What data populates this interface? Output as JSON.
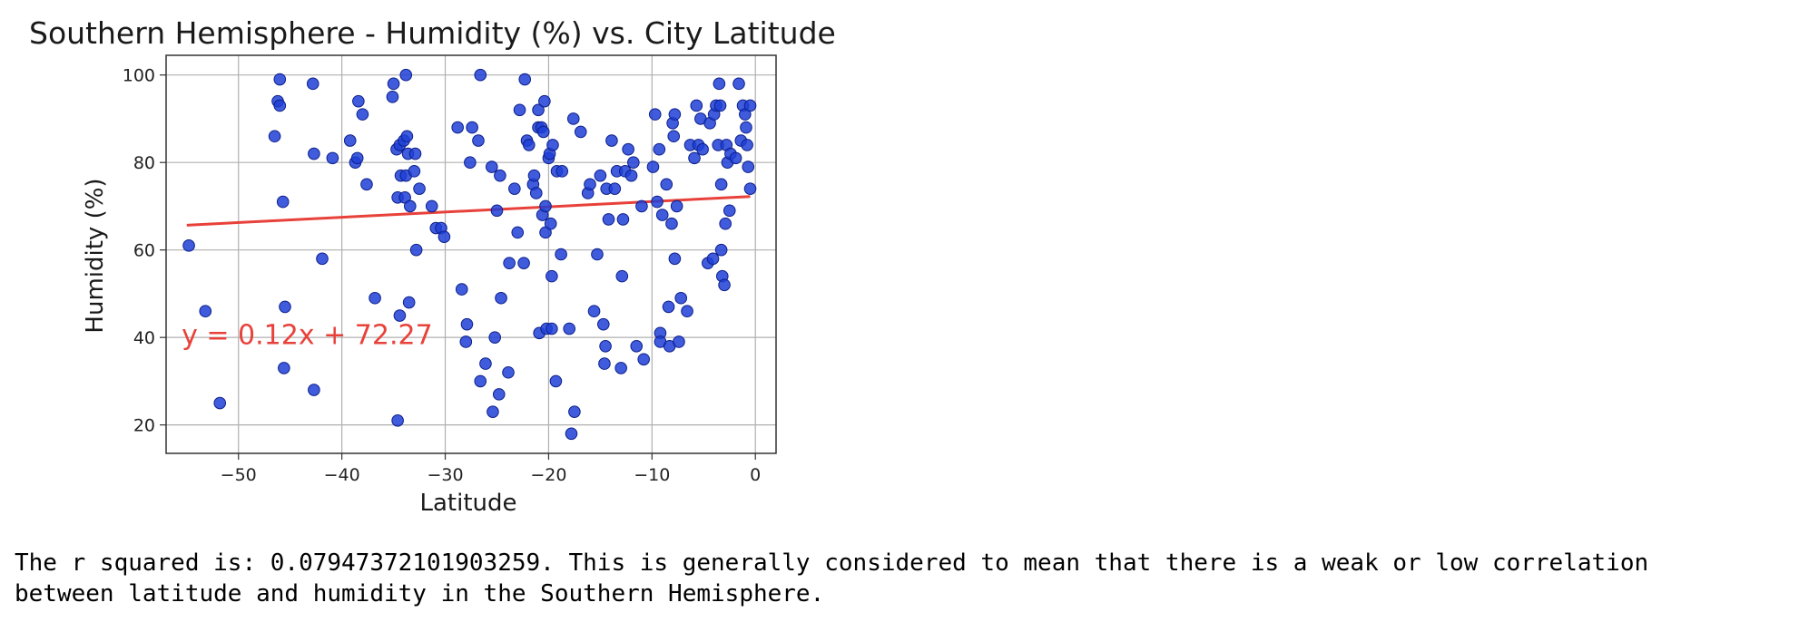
{
  "chart_data": {
    "type": "scatter",
    "title": "Southern Hemisphere - Humidity (%) vs. City Latitude",
    "xlabel": "Latitude",
    "ylabel": "Humidity (%)",
    "xlim": [
      -57,
      2
    ],
    "ylim": [
      13.5,
      104.5
    ],
    "xticks": [
      -50,
      -40,
      -30,
      -20,
      -10,
      0
    ],
    "yticks": [
      20,
      40,
      60,
      80,
      100
    ],
    "xtick_labels": [
      "−50",
      "−40",
      "−30",
      "−20",
      "−10",
      "0"
    ],
    "ytick_labels": [
      "20",
      "40",
      "60",
      "80",
      "100"
    ],
    "grid": true,
    "point_color": "#1f3fd6",
    "line_color": "#e8413a",
    "regression": {
      "slope": 0.12,
      "intercept": 72.27,
      "x_range": [
        -55,
        -0.5
      ],
      "equation_label": "y = 0.12x + 72.27",
      "label_position": [
        -55.5,
        38.5
      ]
    },
    "points": [
      [
        -54.8,
        61
      ],
      [
        -53.2,
        46
      ],
      [
        -51.8,
        25
      ],
      [
        -46.5,
        86
      ],
      [
        -46.2,
        94
      ],
      [
        -46.0,
        99
      ],
      [
        -46.0,
        93
      ],
      [
        -45.7,
        71
      ],
      [
        -45.5,
        47
      ],
      [
        -45.6,
        33
      ],
      [
        -42.8,
        98
      ],
      [
        -42.7,
        82
      ],
      [
        -42.7,
        28
      ],
      [
        -41.9,
        58
      ],
      [
        -40.9,
        81
      ],
      [
        -39.2,
        85
      ],
      [
        -38.7,
        80
      ],
      [
        -38.5,
        81
      ],
      [
        -38.4,
        94
      ],
      [
        -38.0,
        91
      ],
      [
        -37.6,
        75
      ],
      [
        -36.8,
        49
      ],
      [
        -35.1,
        95
      ],
      [
        -35.0,
        98
      ],
      [
        -34.7,
        83
      ],
      [
        -34.6,
        72
      ],
      [
        -34.4,
        84
      ],
      [
        -34.4,
        45
      ],
      [
        -34.6,
        21
      ],
      [
        -34.3,
        77
      ],
      [
        -34.0,
        85
      ],
      [
        -33.8,
        77
      ],
      [
        -33.9,
        72
      ],
      [
        -33.7,
        86
      ],
      [
        -33.8,
        100
      ],
      [
        -33.6,
        82
      ],
      [
        -33.5,
        48
      ],
      [
        -33.4,
        70
      ],
      [
        -33.0,
        78
      ],
      [
        -32.9,
        82
      ],
      [
        -32.8,
        60
      ],
      [
        -32.5,
        74
      ],
      [
        -31.3,
        70
      ],
      [
        -30.9,
        65
      ],
      [
        -30.4,
        65
      ],
      [
        -30.1,
        63
      ],
      [
        -28.8,
        88
      ],
      [
        -28.4,
        51
      ],
      [
        -28.0,
        39
      ],
      [
        -27.9,
        43
      ],
      [
        -27.6,
        80
      ],
      [
        -27.4,
        88
      ],
      [
        -26.8,
        85
      ],
      [
        -26.6,
        100
      ],
      [
        -26.6,
        30
      ],
      [
        -26.1,
        34
      ],
      [
        -25.5,
        79
      ],
      [
        -25.4,
        23
      ],
      [
        -25.2,
        40
      ],
      [
        -25.0,
        69
      ],
      [
        -24.8,
        27
      ],
      [
        -24.7,
        77
      ],
      [
        -24.6,
        49
      ],
      [
        -23.9,
        32
      ],
      [
        -23.8,
        57
      ],
      [
        -23.3,
        74
      ],
      [
        -23.0,
        64
      ],
      [
        -22.8,
        92
      ],
      [
        -22.4,
        57
      ],
      [
        -22.3,
        99
      ],
      [
        -22.1,
        85
      ],
      [
        -21.9,
        84
      ],
      [
        -21.5,
        75
      ],
      [
        -21.4,
        77
      ],
      [
        -21.2,
        73
      ],
      [
        -21.0,
        88
      ],
      [
        -21.0,
        92
      ],
      [
        -20.9,
        41
      ],
      [
        -20.7,
        88
      ],
      [
        -20.6,
        68
      ],
      [
        -20.5,
        87
      ],
      [
        -20.4,
        94
      ],
      [
        -20.3,
        70
      ],
      [
        -20.3,
        64
      ],
      [
        -20.2,
        42
      ],
      [
        -20.0,
        81
      ],
      [
        -19.9,
        82
      ],
      [
        -19.8,
        66
      ],
      [
        -19.7,
        54
      ],
      [
        -19.7,
        42
      ],
      [
        -19.6,
        84
      ],
      [
        -19.3,
        30
      ],
      [
        -19.2,
        78
      ],
      [
        -18.8,
        59
      ],
      [
        -18.7,
        78
      ],
      [
        -18.0,
        42
      ],
      [
        -17.8,
        18
      ],
      [
        -17.6,
        90
      ],
      [
        -17.5,
        23
      ],
      [
        -16.9,
        87
      ],
      [
        -16.2,
        73
      ],
      [
        -16.0,
        75
      ],
      [
        -15.6,
        46
      ],
      [
        -15.3,
        59
      ],
      [
        -15.0,
        77
      ],
      [
        -14.7,
        43
      ],
      [
        -14.6,
        34
      ],
      [
        -14.5,
        38
      ],
      [
        -14.4,
        74
      ],
      [
        -14.2,
        67
      ],
      [
        -13.9,
        85
      ],
      [
        -13.6,
        74
      ],
      [
        -13.4,
        78
      ],
      [
        -13.0,
        33
      ],
      [
        -12.9,
        54
      ],
      [
        -12.8,
        67
      ],
      [
        -12.6,
        78
      ],
      [
        -12.3,
        83
      ],
      [
        -12.0,
        77
      ],
      [
        -11.8,
        80
      ],
      [
        -11.5,
        38
      ],
      [
        -11.0,
        70
      ],
      [
        -10.8,
        35
      ],
      [
        -9.9,
        79
      ],
      [
        -9.7,
        91
      ],
      [
        -9.5,
        71
      ],
      [
        -9.3,
        83
      ],
      [
        -9.2,
        41
      ],
      [
        -9.2,
        39
      ],
      [
        -9.0,
        68
      ],
      [
        -8.6,
        75
      ],
      [
        -8.4,
        47
      ],
      [
        -8.3,
        38
      ],
      [
        -8.1,
        66
      ],
      [
        -8.0,
        89
      ],
      [
        -7.9,
        86
      ],
      [
        -7.8,
        91
      ],
      [
        -7.8,
        58
      ],
      [
        -7.6,
        70
      ],
      [
        -7.4,
        39
      ],
      [
        -7.2,
        49
      ],
      [
        -6.6,
        46
      ],
      [
        -6.3,
        84
      ],
      [
        -5.9,
        81
      ],
      [
        -5.7,
        93
      ],
      [
        -5.5,
        84
      ],
      [
        -5.3,
        90
      ],
      [
        -5.1,
        83
      ],
      [
        -4.6,
        57
      ],
      [
        -4.4,
        89
      ],
      [
        -4.1,
        58
      ],
      [
        -4.0,
        91
      ],
      [
        -3.8,
        93
      ],
      [
        -3.6,
        84
      ],
      [
        -3.5,
        98
      ],
      [
        -3.4,
        93
      ],
      [
        -3.3,
        60
      ],
      [
        -3.3,
        75
      ],
      [
        -3.2,
        54
      ],
      [
        -3.0,
        52
      ],
      [
        -2.9,
        66
      ],
      [
        -2.8,
        84
      ],
      [
        -2.7,
        80
      ],
      [
        -2.5,
        69
      ],
      [
        -2.4,
        82
      ],
      [
        -1.9,
        81
      ],
      [
        -1.6,
        98
      ],
      [
        -1.4,
        85
      ],
      [
        -1.2,
        93
      ],
      [
        -1.0,
        91
      ],
      [
        -0.9,
        88
      ],
      [
        -0.8,
        84
      ],
      [
        -0.7,
        79
      ],
      [
        -0.5,
        93
      ],
      [
        -0.5,
        74
      ]
    ]
  },
  "output": {
    "text": "The r squared is: 0.07947372101903259. This is generally considered to mean that there is a weak or low correlation\nbetween latitude and humidity in the Southern Hemisphere."
  }
}
